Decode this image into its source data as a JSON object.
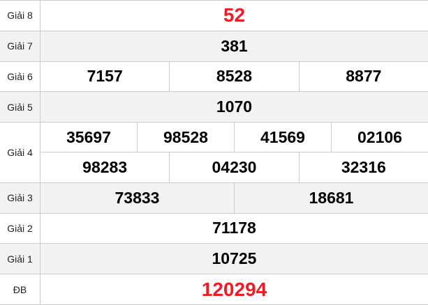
{
  "table": {
    "title": "lottery-results",
    "colors": {
      "highlight_red": "#ee1c25",
      "row_alt_bg": "#f2f2f2",
      "border": "#cccccc",
      "number_black": "#000000"
    },
    "rows": [
      {
        "label": "Giải 8",
        "cells": [
          "52"
        ],
        "highlight": true
      },
      {
        "label": "Giải 7",
        "cells": [
          "381"
        ],
        "highlight": false
      },
      {
        "label": "Giải 6",
        "cells": [
          "7157",
          "8528",
          "8877"
        ],
        "highlight": false
      },
      {
        "label": "Giải 5",
        "cells": [
          "1070"
        ],
        "highlight": false
      },
      {
        "label": "Giải 4",
        "cells": [
          "35697",
          "98528",
          "41569",
          "02106",
          "98283",
          "04230",
          "32316"
        ],
        "highlight": false
      },
      {
        "label": "Giải 3",
        "cells": [
          "73833",
          "18681"
        ],
        "highlight": false
      },
      {
        "label": "Giải 2",
        "cells": [
          "71178"
        ],
        "highlight": false
      },
      {
        "label": "Giải 1",
        "cells": [
          "10725"
        ],
        "highlight": false
      },
      {
        "label": "ĐB",
        "cells": [
          "120294"
        ],
        "highlight": true
      }
    ]
  }
}
